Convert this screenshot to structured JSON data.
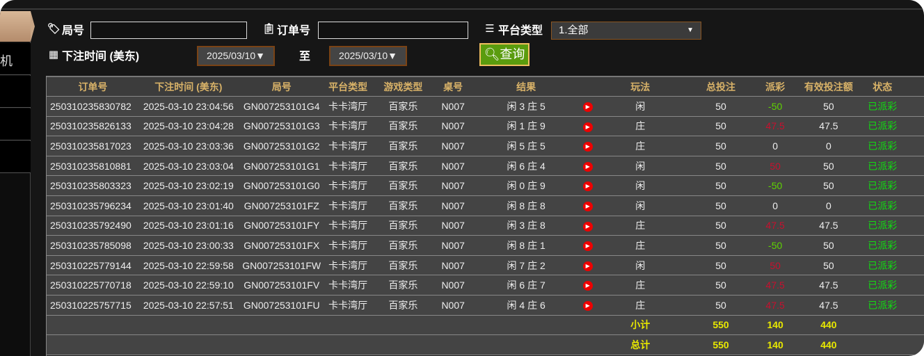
{
  "sidebar": {
    "partial_item": "机"
  },
  "filters": {
    "round_label": "局号",
    "round_value": "",
    "order_label": "订单号",
    "order_value": "",
    "platform_label": "平台类型",
    "platform_value": "1.全部",
    "time_label": "下注时间 (美东)",
    "date_from": "2025/03/10▼",
    "to_label": "至",
    "date_to": "2025/03/10▼",
    "query_label": "查询"
  },
  "table": {
    "headers": [
      "订单号",
      "下注时间 (美东)",
      "局号",
      "平台类型",
      "游戏类型",
      "桌号",
      "结果",
      "",
      "玩法",
      "总投注",
      "派彩",
      "有效投注额",
      "状态",
      ""
    ],
    "rows": [
      {
        "order": "250310235830782",
        "time": "2025-03-10 23:04:56",
        "round": "GN007253101G4",
        "platform": "卡卡湾厅",
        "game": "百家乐",
        "table": "N007",
        "result": "闲 3 庄 5",
        "play": "闲",
        "bet": "50",
        "payout": "-50",
        "payout_color": "green",
        "valid": "50",
        "status": "已派彩"
      },
      {
        "order": "250310235826133",
        "time": "2025-03-10 23:04:28",
        "round": "GN007253101G3",
        "platform": "卡卡湾厅",
        "game": "百家乐",
        "table": "N007",
        "result": "闲 1 庄 9",
        "play": "庄",
        "bet": "50",
        "payout": "47.5",
        "payout_color": "red",
        "valid": "47.5",
        "status": "已派彩"
      },
      {
        "order": "250310235817023",
        "time": "2025-03-10 23:03:36",
        "round": "GN007253101G2",
        "platform": "卡卡湾厅",
        "game": "百家乐",
        "table": "N007",
        "result": "闲 5 庄 5",
        "play": "庄",
        "bet": "50",
        "payout": "0",
        "payout_color": "white",
        "valid": "0",
        "status": "已派彩"
      },
      {
        "order": "250310235810881",
        "time": "2025-03-10 23:03:04",
        "round": "GN007253101G1",
        "platform": "卡卡湾厅",
        "game": "百家乐",
        "table": "N007",
        "result": "闲 6 庄 4",
        "play": "闲",
        "bet": "50",
        "payout": "50",
        "payout_color": "red",
        "valid": "50",
        "status": "已派彩"
      },
      {
        "order": "250310235803323",
        "time": "2025-03-10 23:02:19",
        "round": "GN007253101G0",
        "platform": "卡卡湾厅",
        "game": "百家乐",
        "table": "N007",
        "result": "闲 0 庄 9",
        "play": "闲",
        "bet": "50",
        "payout": "-50",
        "payout_color": "green",
        "valid": "50",
        "status": "已派彩"
      },
      {
        "order": "250310235796234",
        "time": "2025-03-10 23:01:40",
        "round": "GN007253101FZ",
        "platform": "卡卡湾厅",
        "game": "百家乐",
        "table": "N007",
        "result": "闲 8 庄 8",
        "play": "闲",
        "bet": "50",
        "payout": "0",
        "payout_color": "white",
        "valid": "0",
        "status": "已派彩"
      },
      {
        "order": "250310235792490",
        "time": "2025-03-10 23:01:16",
        "round": "GN007253101FY",
        "platform": "卡卡湾厅",
        "game": "百家乐",
        "table": "N007",
        "result": "闲 3 庄 8",
        "play": "庄",
        "bet": "50",
        "payout": "47.5",
        "payout_color": "red",
        "valid": "47.5",
        "status": "已派彩"
      },
      {
        "order": "250310235785098",
        "time": "2025-03-10 23:00:33",
        "round": "GN007253101FX",
        "platform": "卡卡湾厅",
        "game": "百家乐",
        "table": "N007",
        "result": "闲 8 庄 1",
        "play": "庄",
        "bet": "50",
        "payout": "-50",
        "payout_color": "green",
        "valid": "50",
        "status": "已派彩"
      },
      {
        "order": "250310225779144",
        "time": "2025-03-10 22:59:58",
        "round": "GN007253101FW",
        "platform": "卡卡湾厅",
        "game": "百家乐",
        "table": "N007",
        "result": "闲 7 庄 2",
        "play": "闲",
        "bet": "50",
        "payout": "50",
        "payout_color": "red",
        "valid": "50",
        "status": "已派彩"
      },
      {
        "order": "250310225770718",
        "time": "2025-03-10 22:59:10",
        "round": "GN007253101FV",
        "platform": "卡卡湾厅",
        "game": "百家乐",
        "table": "N007",
        "result": "闲 6 庄 7",
        "play": "庄",
        "bet": "50",
        "payout": "47.5",
        "payout_color": "red",
        "valid": "47.5",
        "status": "已派彩"
      },
      {
        "order": "250310225757715",
        "time": "2025-03-10 22:57:51",
        "round": "GN007253101FU",
        "platform": "卡卡湾厅",
        "game": "百家乐",
        "table": "N007",
        "result": "闲 4 庄 6",
        "play": "庄",
        "bet": "50",
        "payout": "47.5",
        "payout_color": "red",
        "valid": "47.5",
        "status": "已派彩"
      }
    ],
    "subtotal": {
      "label": "小计",
      "bet": "550",
      "payout": "140",
      "valid": "440"
    },
    "total": {
      "label": "总计",
      "bet": "550",
      "payout": "140",
      "valid": "440"
    }
  }
}
